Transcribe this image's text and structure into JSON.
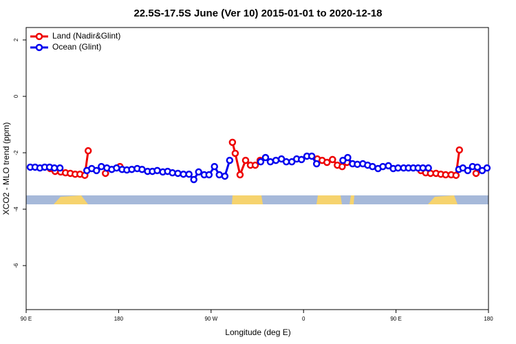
{
  "chart_data": {
    "type": "line",
    "title": "22.5S-17.5S June (Ver 10)   2015-01-01 to 2020-12-18",
    "x_label": "Longitude (deg E)",
    "y_label": "XCO2 - MLO trend (ppm)",
    "xlim": [
      90,
      540
    ],
    "xticks": [
      {
        "value": 90,
        "label": "90 E"
      },
      {
        "value": 180,
        "label": "180"
      },
      {
        "value": 270,
        "label": "90 W"
      },
      {
        "value": 360,
        "label": "0"
      },
      {
        "value": 450,
        "label": "90 E"
      },
      {
        "value": 540,
        "label": "180"
      }
    ],
    "ylim": [
      -7.56,
      2.44
    ],
    "yticks": [
      2,
      0,
      -2,
      -4,
      -6
    ],
    "legend": "top-left",
    "series": [
      {
        "name": "Land (Nadir&Glint)",
        "color": "#ee0000",
        "x": [
          113.5,
          118.2,
          123.6,
          128.3,
          133,
          137.7,
          142.4,
          147.1,
          150.4,
          null,
          167.2,
          null,
          181.3,
          null,
          290.8,
          293.5,
          298.2,
          303.6,
          308.3,
          313,
          317.7,
          null,
          373.4,
          378.1,
          382.8,
          388.2,
          392.9,
          397.6,
          402.3,
          null,
          474.2,
          478.9,
          483.6,
          488.9,
          493.6,
          498.3,
          503.7,
          508.4,
          511.7,
          null,
          527.9
        ],
        "values": [
          -2.56,
          -2.66,
          -2.68,
          -2.71,
          -2.73,
          -2.76,
          -2.76,
          -2.8,
          -1.93,
          null,
          -2.73,
          null,
          -2.49,
          null,
          -1.63,
          -2.02,
          -2.78,
          -2.27,
          -2.44,
          -2.44,
          -2.27,
          null,
          -2.22,
          -2.27,
          -2.34,
          -2.24,
          -2.44,
          -2.49,
          -2.34,
          null,
          -2.63,
          -2.71,
          -2.73,
          -2.73,
          -2.76,
          -2.78,
          -2.78,
          -2.8,
          -1.9,
          null,
          -2.73
        ]
      },
      {
        "name": "Ocean (Glint)",
        "color": "#0000ee",
        "x": [
          94,
          98.7,
          103.4,
          108.1,
          112.8,
          117.5,
          122.9,
          null,
          149.1,
          153.8,
          158.5,
          163.2,
          168.6,
          173.3,
          178,
          183.4,
          188,
          192.8,
          198.1,
          202.8,
          208.2,
          212.9,
          217.6,
          223,
          227.7,
          232.4,
          237.7,
          243.1,
          248.5,
          253.2,
          257.9,
          263.3,
          268,
          273.3,
          278,
          283.4,
          288.1,
          null,
          318.3,
          323,
          327.7,
          333.1,
          338.5,
          343.2,
          348.6,
          353.3,
          358,
          363.3,
          368,
          372.7,
          null,
          398.3,
          403,
          407.7,
          412.4,
          417.7,
          422.4,
          427.1,
          432.5,
          437.2,
          442.6,
          447.3,
          452,
          457.4,
          462.1,
          466.8,
          471.5,
          476.2,
          481.5,
          null,
          511.1,
          515.1,
          519.8,
          524.5,
          529.2,
          533.9,
          538.6
        ],
        "values": [
          -2.51,
          -2.51,
          -2.54,
          -2.51,
          -2.51,
          -2.54,
          -2.54,
          null,
          -2.63,
          -2.56,
          -2.63,
          -2.49,
          -2.54,
          -2.59,
          -2.54,
          -2.59,
          -2.61,
          -2.59,
          -2.56,
          -2.59,
          -2.66,
          -2.66,
          -2.63,
          -2.68,
          -2.66,
          -2.71,
          -2.73,
          -2.76,
          -2.76,
          -2.95,
          -2.68,
          -2.78,
          -2.78,
          -2.49,
          -2.78,
          -2.83,
          -2.27,
          null,
          -2.32,
          -2.17,
          -2.32,
          -2.27,
          -2.22,
          -2.32,
          -2.32,
          -2.22,
          -2.24,
          -2.12,
          -2.12,
          -2.39,
          null,
          -2.27,
          -2.17,
          -2.39,
          -2.41,
          -2.39,
          -2.44,
          -2.49,
          -2.56,
          -2.49,
          -2.46,
          -2.56,
          -2.54,
          -2.54,
          -2.54,
          -2.54,
          -2.54,
          -2.54,
          -2.54,
          null,
          -2.59,
          -2.54,
          -2.63,
          -2.49,
          -2.51,
          -2.63,
          -2.54
        ]
      }
    ]
  }
}
